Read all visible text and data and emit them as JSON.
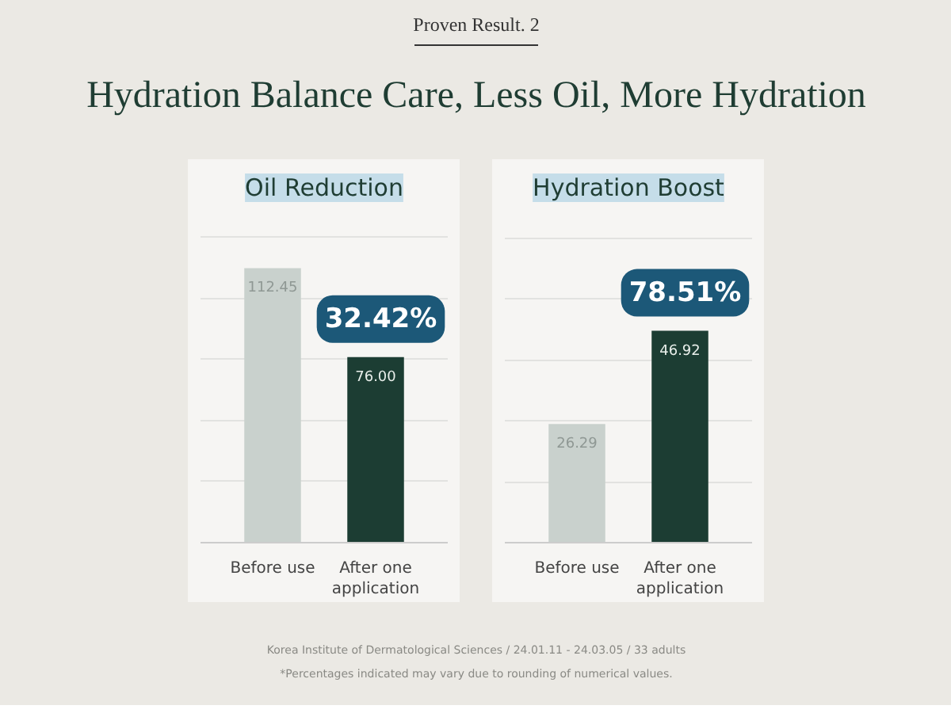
{
  "chart_data": [
    {
      "type": "other",
      "subtitle": "Proven Result. 2",
      "title": "Hydration Balance Care, Less Oil, More Hydration"
    },
    {
      "type": "bar",
      "title": "Oil Reduction",
      "categories": [
        "Before use",
        "After one application"
      ],
      "values": [
        112.45,
        76.0
      ],
      "value_labels": [
        "112.45",
        "76.00"
      ],
      "colors": [
        "#c9d1cd",
        "#1c3d33"
      ],
      "ylim": [
        0,
        135
      ],
      "yticks": [
        {
          "value": 0,
          "label": null
        },
        {
          "value": 25,
          "label": null
        },
        {
          "value": 50,
          "label": null
        },
        {
          "value": 75,
          "label": null
        },
        {
          "value": 100,
          "label": null
        },
        {
          "value": 125,
          "label": null
        }
      ],
      "grid": "y",
      "tick_labels": "x",
      "annotations": [
        {
          "text": "32.42%",
          "x": "After one application",
          "y": 76.0
        }
      ]
    },
    {
      "type": "bar",
      "title": "Hydration Boost",
      "categories": [
        "Before use",
        "After one application"
      ],
      "values": [
        26.29,
        46.92
      ],
      "value_labels": [
        "26.29",
        "46.92"
      ],
      "colors": [
        "#c9d1cd",
        "#1c3d33"
      ],
      "ylim": [
        0,
        73
      ],
      "yticks": [
        {
          "value": 0,
          "label": null
        },
        {
          "value": 13.5,
          "label": null
        },
        {
          "value": 27,
          "label": null
        },
        {
          "value": 40.5,
          "label": null
        },
        {
          "value": 54,
          "label": null
        },
        {
          "value": 67.5,
          "label": null
        }
      ],
      "grid": "y",
      "tick_labels": "x",
      "annotations": [
        {
          "text": "78.51%",
          "x": "After one application",
          "y": 46.92
        }
      ]
    },
    {
      "type": "other",
      "annotations": [
        "Korea Institute of Dermatological Sciences / 24.01.11 - 24.03.05 / 33 adults",
        "*Percentages indicated may vary due to rounding of numerical values."
      ]
    }
  ]
}
